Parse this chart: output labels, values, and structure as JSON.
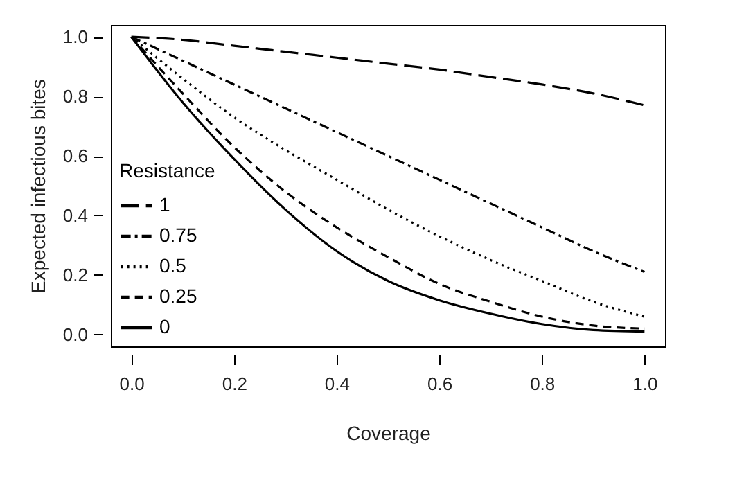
{
  "chart_data": {
    "type": "line",
    "xlabel": "Coverage",
    "ylabel": "Expected infectious bites",
    "legend_title": "Resistance",
    "legend": "bottom left",
    "x": [
      0,
      0.1,
      0.2,
      0.3,
      0.4,
      0.5,
      0.6,
      0.7,
      0.8,
      0.9,
      1.0
    ],
    "series": [
      {
        "name": "1",
        "color": "#000000",
        "line_style": "longdash",
        "values": [
          1,
          0.99,
          0.97,
          0.95,
          0.93,
          0.91,
          0.89,
          0.865,
          0.84,
          0.81,
          0.77
        ]
      },
      {
        "name": "0.75",
        "color": "#000000",
        "line_style": "dotdash",
        "values": [
          1,
          0.92,
          0.84,
          0.76,
          0.68,
          0.6,
          0.52,
          0.44,
          0.36,
          0.28,
          0.21
        ]
      },
      {
        "name": "0.5",
        "color": "#000000",
        "line_style": "dotted",
        "values": [
          1,
          0.86,
          0.73,
          0.62,
          0.52,
          0.42,
          0.33,
          0.25,
          0.18,
          0.11,
          0.06
        ]
      },
      {
        "name": "0.25",
        "color": "#000000",
        "line_style": "dashed",
        "values": [
          1,
          0.81,
          0.63,
          0.48,
          0.36,
          0.26,
          0.17,
          0.11,
          0.06,
          0.03,
          0.02
        ]
      },
      {
        "name": "0",
        "color": "#000000",
        "line_style": "solid",
        "values": [
          1,
          0.78,
          0.59,
          0.42,
          0.28,
          0.18,
          0.115,
          0.07,
          0.035,
          0.015,
          0.01
        ]
      }
    ],
    "xlim": [
      -0.04,
      1.04
    ],
    "ylim": [
      -0.04,
      1.04
    ],
    "xticks": [
      {
        "value": 0,
        "label": "0.0"
      },
      {
        "value": 0.2,
        "label": "0.2"
      },
      {
        "value": 0.4,
        "label": "0.4"
      },
      {
        "value": 0.6,
        "label": "0.6"
      },
      {
        "value": 0.8,
        "label": "0.8"
      },
      {
        "value": 1,
        "label": "1.0"
      }
    ],
    "yticks": [
      {
        "value": 0,
        "label": "0.0"
      },
      {
        "value": 0.2,
        "label": "0.2"
      },
      {
        "value": 0.4,
        "label": "0.4"
      },
      {
        "value": 0.6,
        "label": "0.6"
      },
      {
        "value": 0.8,
        "label": "0.8"
      },
      {
        "value": 1,
        "label": "1.0"
      }
    ],
    "grid": false
  }
}
